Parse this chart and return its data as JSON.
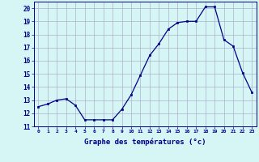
{
  "hours": [
    0,
    1,
    2,
    3,
    4,
    5,
    6,
    7,
    8,
    9,
    10,
    11,
    12,
    13,
    14,
    15,
    16,
    17,
    18,
    19,
    20,
    21,
    22,
    23
  ],
  "temps": [
    12.5,
    12.7,
    13.0,
    13.1,
    12.6,
    11.5,
    11.5,
    11.5,
    11.5,
    12.3,
    13.4,
    14.9,
    16.4,
    17.3,
    18.4,
    18.9,
    19.0,
    19.0,
    20.1,
    20.1,
    17.6,
    17.1,
    15.1,
    13.6
  ],
  "line_color": "#00008b",
  "marker": "s",
  "marker_size": 2.0,
  "bg_color": "#d6f5f5",
  "grid_color": "#b0b0cc",
  "xlabel": "Graphe des températures (°c)",
  "xlabel_color": "#00008b",
  "tick_color": "#00008b",
  "ylim": [
    11,
    20.5
  ],
  "yticks": [
    11,
    12,
    13,
    14,
    15,
    16,
    17,
    18,
    19,
    20
  ],
  "xlim": [
    -0.5,
    23.5
  ]
}
